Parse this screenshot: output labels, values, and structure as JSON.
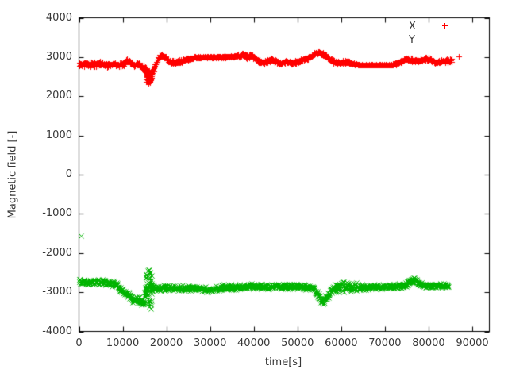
{
  "chart_data": {
    "type": "scatter",
    "title": "",
    "xlabel": "time[s]",
    "ylabel": "Magnetic field [-]",
    "xlim": [
      0,
      93900
    ],
    "ylim": [
      -4000,
      4000
    ],
    "x_ticks": [
      0,
      10000,
      20000,
      30000,
      40000,
      50000,
      60000,
      70000,
      80000,
      90000
    ],
    "y_ticks": [
      -4000,
      -3000,
      -2000,
      -1000,
      0,
      1000,
      2000,
      3000,
      4000
    ],
    "grid": false,
    "legend_position": "top-right-inside",
    "background": "#ffffff",
    "text_color": "#383838",
    "sample_interval_s": 60,
    "series": [
      {
        "name": "X",
        "color": "#ff0000",
        "marker": "plus",
        "legend_marker_visible": true,
        "profile": [
          [
            0,
            2810,
            65
          ],
          [
            2000,
            2830,
            65
          ],
          [
            3500,
            2800,
            70
          ],
          [
            5000,
            2840,
            65
          ],
          [
            6500,
            2800,
            70
          ],
          [
            8000,
            2825,
            65
          ],
          [
            9500,
            2795,
            70
          ],
          [
            10500,
            2850,
            70
          ],
          [
            11200,
            2915,
            60
          ],
          [
            11900,
            2850,
            65
          ],
          [
            12600,
            2790,
            70
          ],
          [
            13300,
            2830,
            65
          ],
          [
            14000,
            2780,
            70
          ],
          [
            14700,
            2750,
            80
          ],
          [
            15200,
            2650,
            110
          ],
          [
            15700,
            2520,
            150
          ],
          [
            16300,
            2480,
            150
          ],
          [
            16800,
            2580,
            120
          ],
          [
            17300,
            2750,
            90
          ],
          [
            18000,
            2950,
            60
          ],
          [
            18800,
            3045,
            50
          ],
          [
            19600,
            3000,
            55
          ],
          [
            20400,
            2910,
            60
          ],
          [
            21200,
            2860,
            60
          ],
          [
            22200,
            2875,
            60
          ],
          [
            23500,
            2905,
            55
          ],
          [
            25000,
            2950,
            45
          ],
          [
            26500,
            2985,
            32
          ],
          [
            28000,
            3000,
            26
          ],
          [
            30000,
            3000,
            24
          ],
          [
            32000,
            3000,
            26
          ],
          [
            34000,
            3005,
            28
          ],
          [
            35500,
            3015,
            35
          ],
          [
            36800,
            3045,
            55
          ],
          [
            37600,
            3065,
            60
          ],
          [
            38400,
            3015,
            65
          ],
          [
            39300,
            3045,
            60
          ],
          [
            40200,
            2975,
            60
          ],
          [
            41200,
            2895,
            60
          ],
          [
            42200,
            2862,
            55
          ],
          [
            43200,
            2905,
            55
          ],
          [
            44200,
            2945,
            50
          ],
          [
            45200,
            2875,
            55
          ],
          [
            46200,
            2835,
            60
          ],
          [
            47200,
            2890,
            55
          ],
          [
            48500,
            2862,
            55
          ],
          [
            50000,
            2880,
            55
          ],
          [
            51500,
            2935,
            50
          ],
          [
            52700,
            3000,
            50
          ],
          [
            53800,
            3080,
            50
          ],
          [
            54700,
            3125,
            45
          ],
          [
            55600,
            3095,
            50
          ],
          [
            56500,
            3030,
            55
          ],
          [
            57400,
            2950,
            60
          ],
          [
            58300,
            2885,
            60
          ],
          [
            59300,
            2845,
            55
          ],
          [
            60300,
            2862,
            50
          ],
          [
            61300,
            2880,
            48
          ],
          [
            62300,
            2850,
            40
          ],
          [
            63200,
            2820,
            26
          ],
          [
            64000,
            2802,
            13
          ],
          [
            66000,
            2800,
            11
          ],
          [
            68000,
            2800,
            11
          ],
          [
            70000,
            2800,
            11
          ],
          [
            71500,
            2806,
            18
          ],
          [
            72500,
            2832,
            45
          ],
          [
            73500,
            2882,
            55
          ],
          [
            74500,
            2932,
            55
          ],
          [
            75400,
            2955,
            55
          ],
          [
            76400,
            2922,
            60
          ],
          [
            77400,
            2892,
            60
          ],
          [
            78400,
            2932,
            55
          ],
          [
            79400,
            2958,
            55
          ],
          [
            80400,
            2930,
            60
          ],
          [
            81400,
            2882,
            60
          ],
          [
            82400,
            2868,
            55
          ],
          [
            83400,
            2890,
            60
          ],
          [
            84400,
            2912,
            60
          ],
          [
            85300,
            2928,
            55
          ]
        ],
        "clusters": [
          {
            "t0": 15400,
            "t1": 16600,
            "dt": 35,
            "mean": 2495,
            "spread": 175
          }
        ],
        "extra_points": [
          [
            86900,
            3010
          ]
        ]
      },
      {
        "name": "Y",
        "color": "#00b400",
        "marker": "cross",
        "legend_marker_visible": false,
        "profile": [
          [
            0,
            -2730,
            80
          ],
          [
            2000,
            -2745,
            80
          ],
          [
            3500,
            -2738,
            85
          ],
          [
            5000,
            -2755,
            80
          ],
          [
            6500,
            -2748,
            85
          ],
          [
            7800,
            -2775,
            85
          ],
          [
            8700,
            -2830,
            95
          ],
          [
            9500,
            -2925,
            95
          ],
          [
            10300,
            -3000,
            95
          ],
          [
            11100,
            -3070,
            100
          ],
          [
            11900,
            -3140,
            100
          ],
          [
            12700,
            -3230,
            100
          ],
          [
            13400,
            -3190,
            110
          ],
          [
            14100,
            -3250,
            110
          ],
          [
            14800,
            -3290,
            120
          ],
          [
            15200,
            -2950,
            200
          ],
          [
            15600,
            -2900,
            220
          ],
          [
            16200,
            -2910,
            220
          ],
          [
            16700,
            -2920,
            180
          ],
          [
            17200,
            -2890,
            100
          ],
          [
            18000,
            -2895,
            85
          ],
          [
            19500,
            -2900,
            80
          ],
          [
            21000,
            -2890,
            80
          ],
          [
            23000,
            -2895,
            80
          ],
          [
            25000,
            -2890,
            80
          ],
          [
            27000,
            -2900,
            80
          ],
          [
            29000,
            -2930,
            80
          ],
          [
            30300,
            -2950,
            82
          ],
          [
            31300,
            -2915,
            80
          ],
          [
            32500,
            -2880,
            80
          ],
          [
            34000,
            -2868,
            80
          ],
          [
            36000,
            -2872,
            80
          ],
          [
            38000,
            -2858,
            80
          ],
          [
            40000,
            -2845,
            80
          ],
          [
            42000,
            -2852,
            78
          ],
          [
            44000,
            -2862,
            78
          ],
          [
            46000,
            -2845,
            78
          ],
          [
            48000,
            -2858,
            78
          ],
          [
            50000,
            -2852,
            78
          ],
          [
            51500,
            -2858,
            78
          ],
          [
            53000,
            -2878,
            85
          ],
          [
            54000,
            -2950,
            95
          ],
          [
            54700,
            -3060,
            95
          ],
          [
            55300,
            -3170,
            90
          ],
          [
            55900,
            -3235,
            85
          ],
          [
            56500,
            -3180,
            95
          ],
          [
            57100,
            -3060,
            105
          ],
          [
            57700,
            -2960,
            115
          ],
          [
            58400,
            -2870,
            135
          ],
          [
            59200,
            -2880,
            145
          ],
          [
            60000,
            -2825,
            155
          ],
          [
            60800,
            -2870,
            145
          ],
          [
            61700,
            -2855,
            135
          ],
          [
            62600,
            -2882,
            125
          ],
          [
            63500,
            -2860,
            115
          ],
          [
            64500,
            -2868,
            105
          ],
          [
            65500,
            -2872,
            95
          ],
          [
            66800,
            -2862,
            80
          ],
          [
            68300,
            -2852,
            72
          ],
          [
            70000,
            -2862,
            70
          ],
          [
            71800,
            -2850,
            70
          ],
          [
            73300,
            -2840,
            72
          ],
          [
            74600,
            -2822,
            78
          ],
          [
            75700,
            -2725,
            95
          ],
          [
            76500,
            -2662,
            95
          ],
          [
            77300,
            -2740,
            88
          ],
          [
            78100,
            -2812,
            78
          ],
          [
            79300,
            -2830,
            70
          ],
          [
            80800,
            -2828,
            70
          ],
          [
            82200,
            -2822,
            70
          ],
          [
            83300,
            -2835,
            70
          ],
          [
            84500,
            -2828,
            65
          ]
        ],
        "clusters": [
          {
            "t0": 15200,
            "t1": 16700,
            "dt": 28,
            "mean": -2920,
            "spread": 500
          }
        ],
        "extra_points": [
          [
            500,
            -1560
          ]
        ]
      }
    ]
  }
}
